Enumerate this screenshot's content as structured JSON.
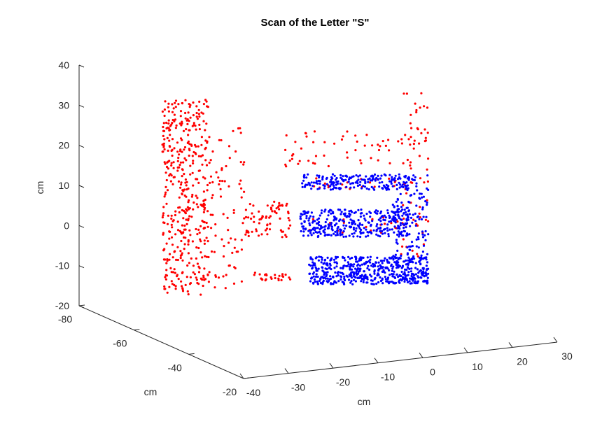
{
  "chart_data": {
    "type": "scatter",
    "title": "Scan of the Letter \"S\"",
    "xlabel": "cm",
    "ylabel": "cm",
    "zlabel": "cm",
    "x_ticks": [
      "-40",
      "-30",
      "-20",
      "-10",
      "0",
      "10",
      "20",
      "30"
    ],
    "y_ticks": [
      "-80",
      "-60",
      "-40",
      "-20"
    ],
    "z_ticks": [
      "40",
      "30",
      "20",
      "10",
      "0",
      "-10",
      "-20"
    ],
    "xlim": [
      -40,
      30
    ],
    "ylim": [
      -80,
      -20
    ],
    "zlim": [
      -20,
      40
    ],
    "grid": false,
    "view": "3d",
    "series": [
      {
        "color": "#ff0000",
        "regions": [
          {
            "x": [
              -36,
              -26
            ],
            "z": [
              -18,
              32
            ],
            "count": 420
          },
          {
            "x": [
              -26,
              -18
            ],
            "z": [
              -16,
              26
            ],
            "count": 80
          },
          {
            "x": [
              -18,
              -8
            ],
            "z": [
              -3,
              6
            ],
            "count": 70
          },
          {
            "x": [
              -16,
              -8
            ],
            "z": [
              -14,
              -12
            ],
            "count": 25
          },
          {
            "x": [
              -10,
              20
            ],
            "z": [
              15,
              24
            ],
            "count": 55
          },
          {
            "x": [
              -5,
              18
            ],
            "z": [
              9,
              12
            ],
            "count": 25
          },
          {
            "x": [
              -5,
              18
            ],
            "z": [
              -2,
              2
            ],
            "count": 25
          },
          {
            "x": [
              16,
              22
            ],
            "z": [
              -8,
              34
            ],
            "count": 60
          }
        ]
      },
      {
        "color": "#0000ff",
        "regions": [
          {
            "x": [
              -6,
              18
            ],
            "z": [
              9,
              13
            ],
            "count": 190
          },
          {
            "x": [
              -6,
              18
            ],
            "z": [
              -3,
              4
            ],
            "count": 330
          },
          {
            "x": [
              -4,
              22
            ],
            "z": [
              -15,
              -8
            ],
            "count": 480
          },
          {
            "x": [
              14,
              22
            ],
            "z": [
              -15,
              13
            ],
            "count": 160
          }
        ]
      }
    ]
  }
}
